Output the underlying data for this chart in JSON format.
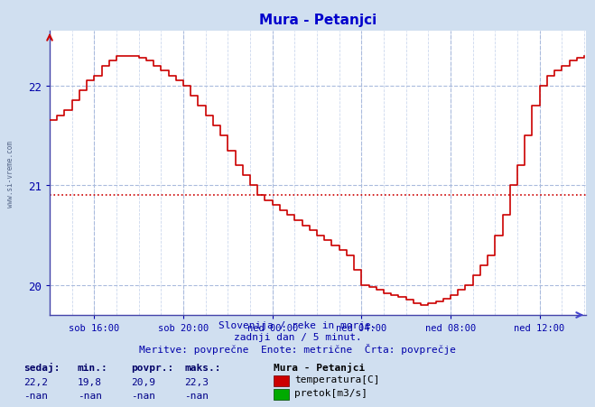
{
  "title": "Mura - Petanjci",
  "title_color": "#0000cc",
  "bg_color": "#d0dff0",
  "plot_bg_color": "#ffffff",
  "line_color": "#cc0000",
  "avg_value": 20.9,
  "avg_line_color": "#cc0000",
  "x_labels": [
    "sob 16:00",
    "sob 20:00",
    "ned 00:00",
    "ned 04:00",
    "ned 08:00",
    "ned 12:00"
  ],
  "x_label_color": "#0000aa",
  "y_label_color": "#0000aa",
  "y_ticks": [
    20,
    21,
    22
  ],
  "ylim_min": 19.7,
  "ylim_max": 22.55,
  "xlim_min": 0,
  "xlim_max": 289,
  "watermark": "www.si-vreme.com",
  "footer_line1": "Slovenija / reke in morje.",
  "footer_line2": "zadnji dan / 5 minut.",
  "footer_line3": "Meritve: povprečne  Enote: metrične  Črta: povprečje",
  "footer_color": "#0000aa",
  "legend_title": "Mura - Petanjci",
  "stat_headers": [
    "sedaj:",
    "min.:",
    "povpr.:",
    "maks.:"
  ],
  "stat_row1": [
    "22,2",
    "19,8",
    "20,9",
    "22,3"
  ],
  "stat_row2": [
    "-nan",
    "-nan",
    "-nan",
    "-nan"
  ],
  "temp_color": "#cc0000",
  "flow_color": "#00aa00",
  "temp_label": "temperatura[C]",
  "flow_label": "pretok[m3/s]",
  "key_x": [
    0,
    4,
    8,
    12,
    16,
    20,
    24,
    28,
    32,
    36,
    40,
    44,
    48,
    52,
    56,
    60,
    64,
    68,
    72,
    76,
    80,
    84,
    88,
    92,
    96,
    100,
    104,
    108,
    112,
    116,
    120,
    124,
    128,
    132,
    136,
    140,
    144,
    148,
    152,
    156,
    160,
    164,
    168,
    172,
    176,
    180,
    184,
    188,
    192,
    196,
    200,
    204,
    208,
    212,
    216,
    220,
    224,
    228,
    232,
    236,
    240,
    244,
    248,
    252,
    256,
    260,
    264,
    268,
    272,
    276,
    280,
    284,
    288
  ],
  "key_y": [
    21.65,
    21.7,
    21.75,
    21.85,
    21.95,
    22.05,
    22.1,
    22.2,
    22.25,
    22.3,
    22.3,
    22.3,
    22.28,
    22.25,
    22.2,
    22.15,
    22.1,
    22.05,
    22.0,
    21.9,
    21.8,
    21.7,
    21.6,
    21.5,
    21.35,
    21.2,
    21.1,
    21.0,
    20.9,
    20.85,
    20.8,
    20.75,
    20.7,
    20.65,
    20.6,
    20.55,
    20.5,
    20.45,
    20.4,
    20.35,
    20.3,
    20.15,
    20.0,
    19.98,
    19.95,
    19.92,
    19.9,
    19.88,
    19.85,
    19.82,
    19.8,
    19.82,
    19.84,
    19.86,
    19.9,
    19.95,
    20.0,
    20.1,
    20.2,
    20.3,
    20.5,
    20.7,
    21.0,
    21.2,
    21.5,
    21.8,
    22.0,
    22.1,
    22.15,
    22.2,
    22.25,
    22.28,
    22.3
  ]
}
